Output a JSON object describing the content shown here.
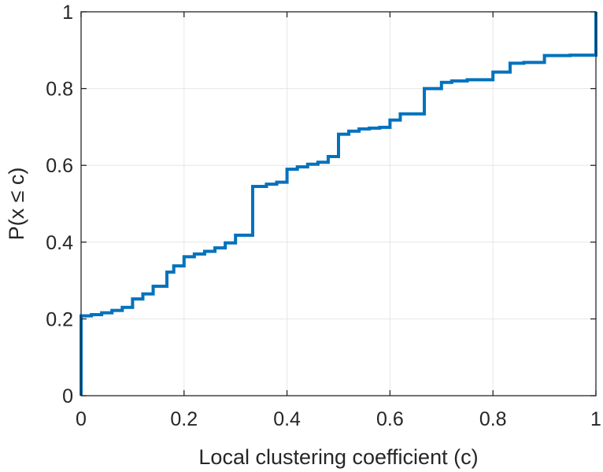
{
  "chart_data": {
    "type": "line",
    "step": true,
    "title": "",
    "xlabel": "Local clustering coefficient (c)",
    "ylabel": "P(x ≤ c)",
    "xlim": [
      0,
      1
    ],
    "ylim": [
      0,
      1
    ],
    "xticks": [
      0,
      0.2,
      0.4,
      0.6,
      0.8,
      1
    ],
    "xtick_labels": [
      "0",
      "0.2",
      "0.4",
      "0.6",
      "0.8",
      "1"
    ],
    "yticks": [
      0,
      0.2,
      0.4,
      0.6,
      0.8,
      1
    ],
    "ytick_labels": [
      "0",
      "0.2",
      "0.4",
      "0.6",
      "0.8",
      "1"
    ],
    "grid": true,
    "color": "#0072BD",
    "series": [
      {
        "x": [
          0,
          0,
          0.02,
          0.04,
          0.06,
          0.08,
          0.1,
          0.12,
          0.14,
          0.1667,
          0.18,
          0.2,
          0.22,
          0.24,
          0.26,
          0.28,
          0.3,
          0.3333,
          0.36,
          0.38,
          0.4,
          0.42,
          0.44,
          0.46,
          0.48,
          0.5,
          0.52,
          0.54,
          0.56,
          0.58,
          0.6,
          0.62,
          0.6667,
          0.7,
          0.72,
          0.75,
          0.8,
          0.8333,
          0.86,
          0.9,
          0.95,
          1,
          1
        ],
        "y": [
          0,
          0.208,
          0.211,
          0.216,
          0.222,
          0.23,
          0.252,
          0.265,
          0.285,
          0.322,
          0.338,
          0.362,
          0.369,
          0.376,
          0.385,
          0.398,
          0.418,
          0.545,
          0.551,
          0.556,
          0.59,
          0.596,
          0.603,
          0.608,
          0.623,
          0.681,
          0.689,
          0.695,
          0.697,
          0.699,
          0.718,
          0.734,
          0.8,
          0.816,
          0.82,
          0.823,
          0.843,
          0.866,
          0.868,
          0.886,
          0.887,
          0.888,
          1
        ]
      }
    ]
  }
}
